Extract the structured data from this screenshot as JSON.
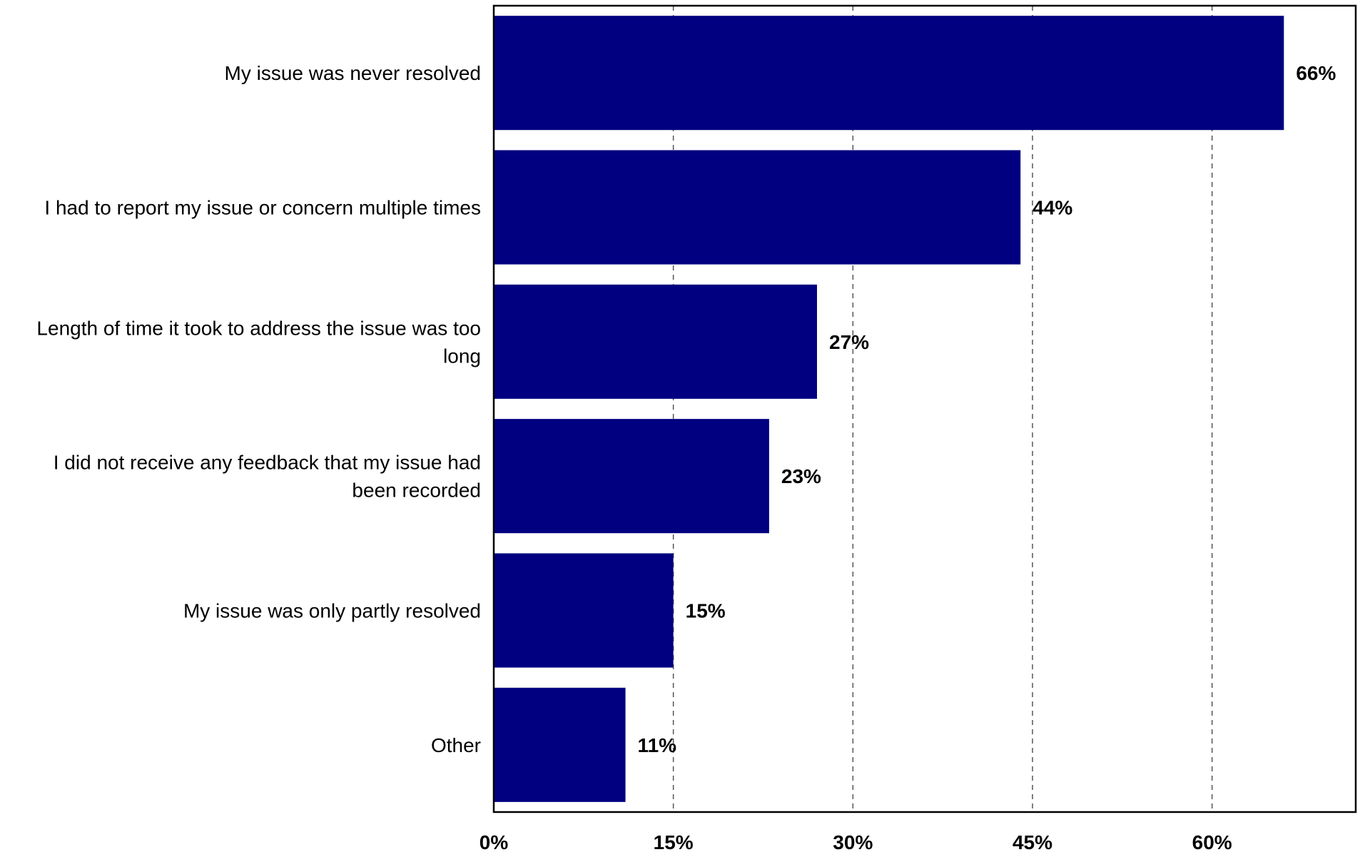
{
  "chart_data": {
    "type": "bar",
    "orientation": "horizontal",
    "categories": [
      "My issue was never resolved",
      "I had to report my issue or concern multiple times",
      "Length of time it took to address the issue was too long",
      "I did not receive any feedback that my issue had been recorded",
      "My issue was only partly resolved",
      "Other"
    ],
    "values": [
      66,
      44,
      27,
      23,
      15,
      11
    ],
    "data_labels": [
      "66%",
      "44%",
      "27%",
      "23%",
      "15%",
      "11%"
    ],
    "xlim": [
      0,
      72
    ],
    "x_ticks": [
      0,
      15,
      30,
      45,
      60
    ],
    "x_tick_labels": [
      "0%",
      "15%",
      "30%",
      "45%",
      "60%"
    ],
    "bar_color": "#000080",
    "grid": "vertical dashed",
    "legend": "none",
    "title": "",
    "xlabel": "",
    "ylabel": ""
  }
}
